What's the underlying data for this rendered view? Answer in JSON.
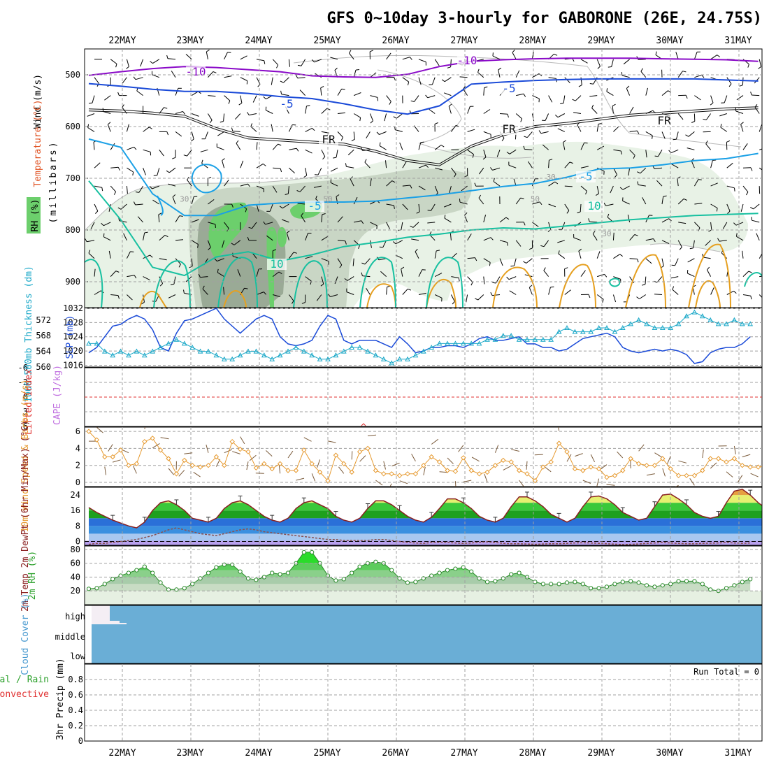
{
  "title": "GFS 0~10day 3-hourly for GABORONE (26E, 24.75S)",
  "dates": [
    "22MAY",
    "23MAY",
    "24MAY",
    "25MAY",
    "26MAY",
    "27MAY",
    "28MAY",
    "29MAY",
    "30MAY",
    "31MAY"
  ],
  "colors": {
    "purple": "#8a0ac8",
    "blue": "#1a4ad8",
    "cyan": "#1aa0e6",
    "teal": "#17c0a0",
    "orange": "#e6a020",
    "rh_light": "#e8f2e6",
    "rh_mid": "#c9d6c5",
    "rh_dark": "#9aaa96",
    "rh_green": "#6ccf6c",
    "cloud": "#6aaed6"
  },
  "chart_data": [
    {
      "id": "upper_air",
      "type": "contour",
      "ylabel": "(millibars)",
      "ylabels": {
        "wind": "Wind (m/s)",
        "temperature": "Temperature (°C)",
        "rh": "RH (%)"
      },
      "yticks": [
        500,
        600,
        700,
        800,
        900
      ],
      "ylim": [
        450,
        950
      ],
      "contour_labels": {
        "m10": "-10",
        "m5": "-5",
        "fr": "FR",
        "p5": "5",
        "p10": "10",
        "rh30": "30",
        "rh50": "50"
      },
      "isotherms": [
        {
          "name": "-10",
          "color": "#8a0ac8",
          "x": [
            0,
            4,
            8,
            12,
            16,
            20,
            24,
            28,
            32,
            36,
            40,
            44,
            48,
            52,
            56,
            60,
            64,
            68,
            72,
            76,
            80,
            84
          ],
          "y": [
            501,
            494,
            488,
            484,
            486,
            490,
            494,
            502,
            504,
            505,
            499,
            484,
            474,
            471,
            469,
            468,
            468,
            468,
            469,
            470,
            471,
            474
          ]
        },
        {
          "name": "-5",
          "color": "#1a4ad8",
          "x": [
            0,
            4,
            8,
            12,
            16,
            20,
            24,
            28,
            32,
            36,
            40,
            44,
            48,
            52,
            56,
            60,
            64,
            68,
            72,
            76,
            80,
            84
          ],
          "y": [
            517,
            522,
            528,
            532,
            532,
            536,
            542,
            546,
            556,
            568,
            576,
            560,
            518,
            514,
            511,
            509,
            508,
            508,
            508,
            508,
            510,
            512
          ]
        },
        {
          "name": "FR",
          "color": "#111111",
          "x": [
            0,
            4,
            8,
            12,
            16,
            20,
            24,
            28,
            32,
            36,
            40,
            44,
            48,
            52,
            56,
            60,
            64,
            68,
            72,
            76,
            80,
            84
          ],
          "y": [
            570,
            572,
            576,
            582,
            606,
            624,
            628,
            632,
            636,
            650,
            668,
            676,
            640,
            618,
            602,
            596,
            588,
            580,
            576,
            572,
            568,
            566
          ]
        },
        {
          "name": "5",
          "color": "#1aa0e6",
          "x": [
            0,
            4,
            8,
            12,
            16,
            20,
            24,
            28,
            32,
            36,
            40,
            44,
            48,
            52,
            56,
            60,
            64,
            68,
            72,
            76,
            80,
            84
          ],
          "y": [
            624,
            640,
            730,
            772,
            772,
            752,
            748,
            746,
            746,
            744,
            738,
            732,
            724,
            716,
            710,
            698,
            682,
            680,
            674,
            666,
            662,
            652
          ]
        },
        {
          "name": "10",
          "color": "#17c0a0",
          "x": [
            0,
            4,
            8,
            12,
            16,
            20,
            24,
            28,
            32,
            36,
            40,
            44,
            48,
            52,
            56,
            60,
            64,
            68,
            72,
            76,
            80,
            84
          ],
          "y": [
            705,
            780,
            872,
            888,
            852,
            842,
            860,
            848,
            832,
            824,
            814,
            808,
            800,
            796,
            798,
            792,
            786,
            780,
            776,
            772,
            770,
            768
          ]
        }
      ],
      "rh_labels": [
        {
          "x": 12,
          "y": 745,
          "text": "30"
        },
        {
          "x": 30,
          "y": 745,
          "text": "50"
        },
        {
          "x": 58,
          "y": 703,
          "text": "30"
        },
        {
          "x": 56,
          "y": 745,
          "text": "50"
        },
        {
          "x": 65,
          "y": 812,
          "text": "30"
        }
      ]
    },
    {
      "id": "slp_thickness",
      "type": "line",
      "ylabel_left": "1000-500mb Thickness (dm)",
      "ylabel_right": "SLP (mb)",
      "yticks_left": [
        560,
        564,
        568,
        572
      ],
      "yticks_right": [
        1016,
        1020,
        1024,
        1028,
        1032
      ],
      "ylim_left": [
        560,
        575
      ],
      "ylim_right": [
        1015.5,
        1032
      ],
      "series": [
        {
          "name": "SLP",
          "color": "#1a4ad8",
          "values": [
            1019.5,
            1021,
            1024,
            1027,
            1027.5,
            1029,
            1030,
            1029,
            1026,
            1021,
            1020,
            1025,
            1028.5,
            1029,
            1030,
            1031,
            1032,
            1029,
            1027,
            1025,
            1027,
            1029,
            1030,
            1029,
            1024,
            1022,
            1021.5,
            1022,
            1023,
            1027,
            1030,
            1029,
            1023,
            1022,
            1023,
            1023,
            1023,
            1022,
            1021,
            1024,
            1022,
            1019.5,
            1020,
            1021,
            1021,
            1021.5,
            1021.5,
            1021,
            1022,
            1023.5,
            1024,
            1023,
            1023,
            1023.5,
            1024,
            1022,
            1022,
            1021,
            1021,
            1020,
            1020.5,
            1022,
            1023.5,
            1024,
            1024.5,
            1025,
            1024,
            1021,
            1020,
            1019.5,
            1020,
            1020.5,
            1020,
            1020.5,
            1020,
            1019,
            1016.5,
            1017,
            1019.5,
            1020.5,
            1021,
            1021,
            1022,
            1024
          ]
        },
        {
          "name": "Thickness",
          "color": "#1aa8c8",
          "values": [
            566,
            566,
            564,
            563,
            564,
            563,
            564,
            563,
            564,
            565,
            566,
            567,
            566,
            565,
            564,
            564,
            563,
            562,
            562,
            563,
            564,
            564,
            563,
            562,
            563,
            564,
            565,
            564,
            563,
            562,
            562,
            563,
            564,
            565,
            565,
            564,
            563,
            562,
            561,
            562,
            562,
            563,
            564,
            565,
            566,
            566,
            566,
            566,
            566,
            566,
            567,
            567,
            568,
            568,
            567,
            567,
            567,
            567,
            567,
            569,
            570,
            569,
            569,
            569,
            570,
            570,
            569,
            570,
            571,
            572,
            571,
            570,
            570,
            570,
            571,
            573,
            574,
            573,
            572,
            571,
            571,
            572,
            571,
            571
          ]
        }
      ]
    },
    {
      "id": "cape_li",
      "type": "line",
      "ylabel_left": "Lifted Index",
      "ylabel_right": "CAPE (J/kg)",
      "yticks": [
        -6,
        -3,
        0,
        3,
        6
      ],
      "ytick_labels": [
        "-6",
        "-3",
        "0",
        "3",
        "6"
      ],
      "ylim": [
        -6,
        6
      ],
      "zero_line": 0
    },
    {
      "id": "wind10m",
      "type": "line",
      "ylabel": "10m Wind Speed & Barbs (m/s)",
      "yticks": [
        0,
        2,
        4,
        6
      ],
      "ylim": [
        0,
        6.5
      ],
      "series": [
        {
          "name": "Wind Speed",
          "color": "#e69a30",
          "values": [
            6,
            5,
            3,
            3,
            3.8,
            2,
            2.2,
            4.8,
            5.2,
            3.8,
            2.8,
            1,
            2.6,
            2,
            1.8,
            2,
            3,
            2,
            4.8,
            3.9,
            3.6,
            1.7,
            2.2,
            1.6,
            2.2,
            1.4,
            1.4,
            3.8,
            2.2,
            1.2,
            0.2,
            3.2,
            2.2,
            1.2,
            3.6,
            4,
            1.4,
            1,
            1,
            0.8,
            1,
            1,
            2,
            3,
            2.4,
            1.4,
            1.3,
            2.9,
            1.4,
            1,
            1.2,
            2,
            2.6,
            2.4,
            1.4,
            1,
            0.2,
            1.8,
            2.4,
            4.6,
            3.6,
            1.6,
            1.4,
            1.8,
            1.6,
            0.6,
            0.8,
            1.4,
            2.8,
            2.2,
            2,
            2,
            2.8,
            1.6,
            0.8,
            0.8,
            0.8,
            1.4,
            2.8,
            2.8,
            2.4,
            2.8,
            2,
            1.8,
            1.8,
            2
          ]
        }
      ]
    },
    {
      "id": "temp_dewpt",
      "type": "area",
      "ylabel": "2m Temp 2m DewPt (6hr Min/Max) (°C)",
      "yticks": [
        0,
        8,
        16,
        24
      ],
      "ylim": [
        -2,
        28
      ],
      "series": [
        {
          "name": "2m Temp",
          "color": "#8a2020",
          "values": [
            17.5,
            15,
            13,
            11,
            9.5,
            8,
            7,
            10,
            16,
            20,
            21,
            19,
            16,
            12,
            11,
            10,
            12,
            17,
            20,
            21,
            19,
            16,
            13,
            11,
            10,
            12,
            17,
            20,
            21,
            19,
            17,
            13,
            11,
            10,
            12,
            17,
            21,
            21,
            19,
            16,
            13,
            11,
            10,
            12.5,
            17,
            22,
            22,
            20,
            17,
            13,
            11,
            10,
            12,
            18,
            23,
            23,
            21,
            18,
            14,
            12,
            10,
            12,
            18,
            23,
            23.5,
            22,
            19,
            15,
            13,
            11,
            12,
            18,
            24,
            24.5,
            22,
            19,
            15,
            13,
            12,
            13,
            20,
            26,
            27,
            24,
            20,
            17,
            15,
            14
          ]
        },
        {
          "name": "2m DewPt",
          "color": "#8a5050",
          "values": [
            -1.5,
            -1,
            -1,
            -0.5,
            0,
            0.5,
            1,
            2,
            3,
            4.5,
            6,
            7,
            6,
            5,
            4,
            3.5,
            3,
            4,
            5,
            6,
            6.5,
            6,
            5,
            4.5,
            4,
            3.5,
            3,
            2.5,
            2,
            1.5,
            1,
            1,
            0.5,
            0.5,
            0.5,
            0.5,
            1,
            1,
            0.5,
            0,
            -0.5,
            -0.8,
            -1,
            -0.6,
            -0.4,
            -0.6,
            -0.8,
            -1,
            -0.8,
            -0.4,
            -0.2,
            -0.6,
            -1,
            -1.2,
            -1.2,
            -1.3,
            -1.5,
            -1.3,
            -1.2,
            -1.2,
            -1,
            -0.8,
            -0.7,
            -0.8,
            -1,
            -1.2,
            -1.4,
            -1.6,
            -1.5,
            -1.3,
            -1,
            -0.8,
            -0.6,
            -0.8,
            -1,
            -1.2,
            -1.2,
            -1,
            -0.9,
            -0.8,
            -0.6,
            -0.8,
            -1,
            -0.8
          ]
        }
      ]
    },
    {
      "id": "rh2m",
      "type": "area",
      "ylabel": "2m RH (%)",
      "yticks": [
        20,
        40,
        60,
        80
      ],
      "ylim": [
        0,
        85
      ],
      "series": [
        {
          "name": "2m RH",
          "color": "#2a8a2a",
          "values": [
            23,
            24,
            30,
            37,
            42,
            46,
            50,
            55,
            46,
            32,
            22,
            22,
            24,
            30,
            38,
            46,
            54,
            58,
            58,
            48,
            38,
            36,
            40,
            46,
            44,
            46,
            60,
            76,
            76,
            60,
            42,
            35,
            37,
            46,
            55,
            60,
            62,
            60,
            50,
            38,
            32,
            33,
            38,
            42,
            46,
            50,
            52,
            54,
            48,
            38,
            33,
            34,
            38,
            44,
            46,
            40,
            33,
            30,
            30,
            30,
            32,
            33,
            30,
            24,
            24,
            26,
            30,
            33,
            34,
            32,
            28,
            26,
            28,
            30,
            34,
            34,
            34,
            30,
            22,
            20,
            24,
            28,
            33,
            37
          ]
        }
      ]
    },
    {
      "id": "cloud_cover",
      "type": "area",
      "ylabel": "Cloud Cover (%)",
      "ytick_labels": [
        "high",
        "middle",
        "low"
      ]
    },
    {
      "id": "precip",
      "type": "bar",
      "ylabel_left": "Total / Rain",
      "ylabel_mid": "Convective",
      "ylabel_right": "3hr Precip (mm)",
      "yticks": [
        0,
        0.2,
        0.4,
        0.6,
        0.8
      ],
      "ytick_labels": [
        "0",
        "0.2",
        "0.4",
        "0.6",
        "0.8"
      ],
      "ylim": [
        0,
        1.0
      ],
      "run_total": "Run Total = 0"
    }
  ]
}
